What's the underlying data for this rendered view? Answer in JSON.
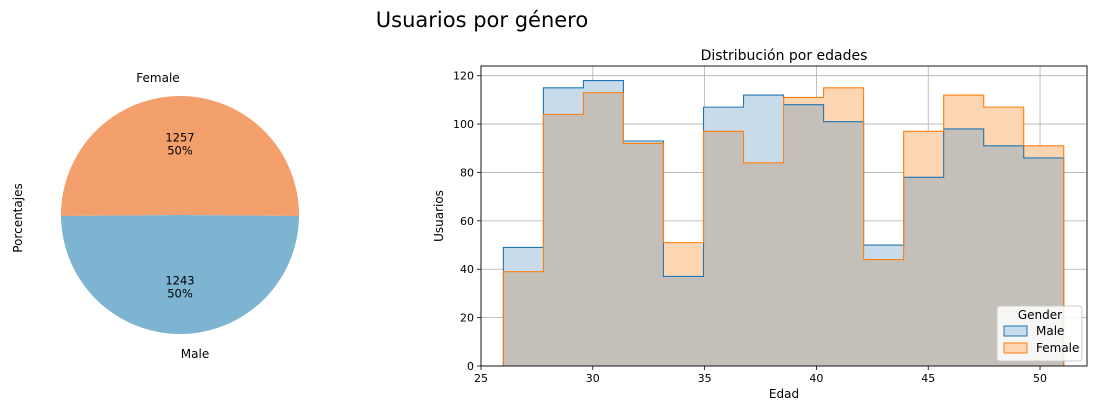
{
  "figure": {
    "title": "Usuarios por género"
  },
  "chart_data": [
    {
      "type": "pie",
      "ylabel": "Porcentajes",
      "slices": [
        {
          "label": "Female",
          "value": 1257,
          "percent": "50%",
          "color": "#f4a06c"
        },
        {
          "label": "Male",
          "value": 1243,
          "percent": "50%",
          "color": "#7cb4d1"
        }
      ]
    },
    {
      "type": "area",
      "subtype": "step-histogram",
      "title": "Distribución por edades",
      "xlabel": "Edad",
      "ylabel": "Usuarios",
      "xlim": [
        25,
        52.1
      ],
      "ylim": [
        0,
        124
      ],
      "xticks": [
        25,
        30,
        35,
        40,
        45,
        50
      ],
      "yticks": [
        0,
        20,
        40,
        60,
        80,
        100,
        120
      ],
      "grid": true,
      "bin_edges": [
        26,
        27.79,
        29.58,
        31.37,
        33.16,
        34.95,
        36.74,
        38.53,
        40.32,
        42.11,
        43.9,
        45.69,
        47.48,
        49.27,
        51.06
      ],
      "series": [
        {
          "name": "Male",
          "values": [
            49,
            115,
            118,
            93,
            37,
            107,
            112,
            108,
            101,
            50,
            78,
            98,
            91,
            86
          ],
          "edge": "#1f77b4",
          "fill": "#c8dbea"
        },
        {
          "name": "Female",
          "values": [
            39,
            104,
            113,
            92,
            51,
            97,
            84,
            111,
            115,
            44,
            97,
            112,
            107,
            91
          ],
          "edge": "#ff7f0e",
          "fill": "#fcd5b3"
        }
      ],
      "legend": {
        "title": "Gender",
        "position": "lower-right"
      }
    }
  ]
}
